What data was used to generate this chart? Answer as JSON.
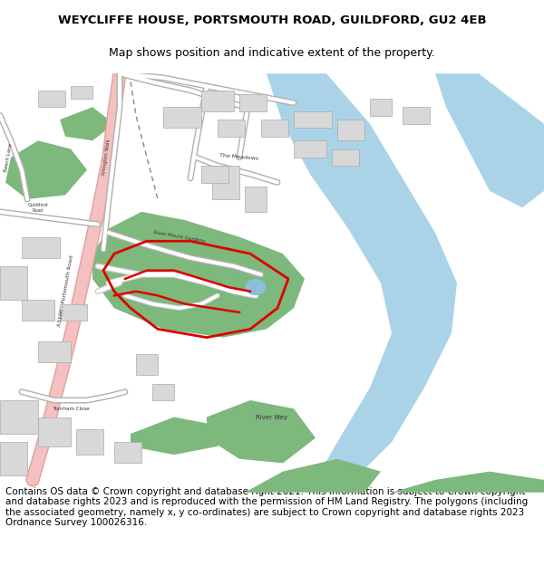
{
  "title_line1": "WEYCLIFFE HOUSE, PORTSMOUTH ROAD, GUILDFORD, GU2 4EB",
  "title_line2": "Map shows position and indicative extent of the property.",
  "title_fontsize": 9.5,
  "subtitle_fontsize": 9,
  "copyright_text": "Contains OS data © Crown copyright and database right 2021. This information is subject to Crown copyright and database rights 2023 and is reproduced with the permission of HM Land Registry. The polygons (including the associated geometry, namely x, y co-ordinates) are subject to Crown copyright and database rights 2023 Ordnance Survey 100026316.",
  "copyright_fontsize": 7.5,
  "bg_color": "#ffffff",
  "map_bg": "#f2f0eb",
  "water_color": "#aad3e8",
  "green_color": "#7db87d",
  "road_main_color": "#f5c0c0",
  "road_minor_color": "#ffffff",
  "road_outline_color": "#b8b8b8",
  "building_color": "#d8d8d8",
  "building_outline": "#aaaaaa",
  "red_boundary_color": "#dd0000"
}
